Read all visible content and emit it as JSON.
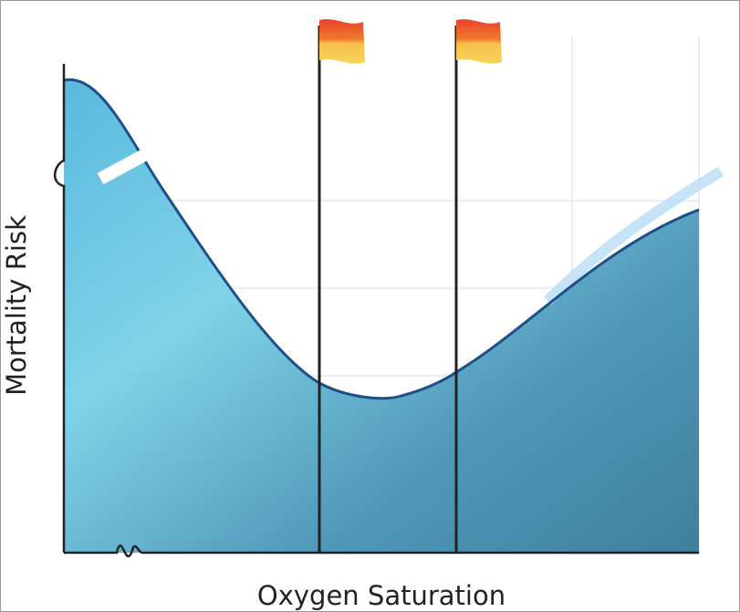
{
  "axes": {
    "x_label": "Oxygen Saturation",
    "y_label": "Mortality Risk"
  }
}
